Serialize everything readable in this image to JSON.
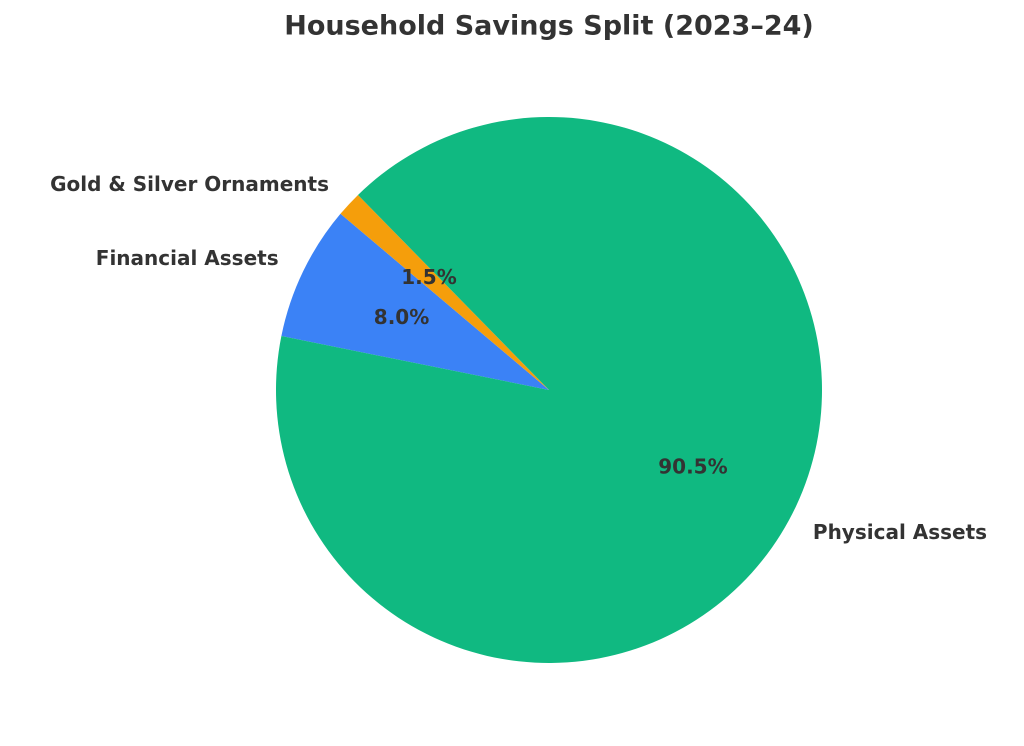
{
  "chart_data": {
    "type": "pie",
    "title": "Household Savings Split (2023–24)",
    "categories": [
      "Financial Assets",
      "Gold & Silver Ornaments",
      "Physical Assets"
    ],
    "values": [
      8.0,
      1.5,
      90.5
    ],
    "value_labels": [
      "8.0%",
      "1.5%",
      "90.5%"
    ],
    "colors": [
      "#3b82f6",
      "#f59e0b",
      "#10b981"
    ]
  }
}
